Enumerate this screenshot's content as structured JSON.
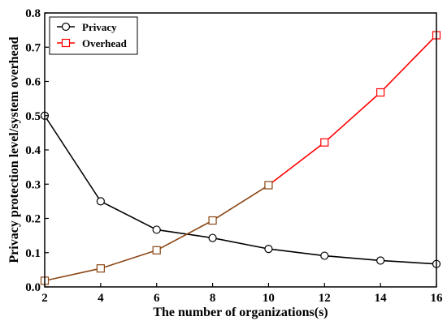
{
  "chart_data": {
    "type": "line",
    "xlabel": "The number of organizations(s)",
    "ylabel": "Privacy protection level/system overhead",
    "xlim": [
      2,
      16
    ],
    "ylim": [
      0.0,
      0.8
    ],
    "xticks": [
      "2",
      "4",
      "6",
      "8",
      "10",
      "12",
      "14",
      "16"
    ],
    "yticks": [
      "0.0",
      "0.1",
      "0.2",
      "0.3",
      "0.4",
      "0.5",
      "0.6",
      "0.7",
      "0.8"
    ],
    "grid": false,
    "legend_position": "top-left",
    "x": [
      2,
      4,
      6,
      8,
      10,
      12,
      14,
      16
    ],
    "series": [
      {
        "name": "Privacy",
        "color": "#000000",
        "marker": "circle",
        "values": [
          0.5,
          0.25,
          0.167,
          0.143,
          0.111,
          0.091,
          0.077,
          0.067
        ]
      },
      {
        "name": "Overhead",
        "color": "#ff0000",
        "marker": "square",
        "values": [
          0.018,
          0.054,
          0.107,
          0.194,
          0.297,
          0.422,
          0.568,
          0.735
        ]
      }
    ],
    "overlap_segment_color": "#8b4513"
  }
}
